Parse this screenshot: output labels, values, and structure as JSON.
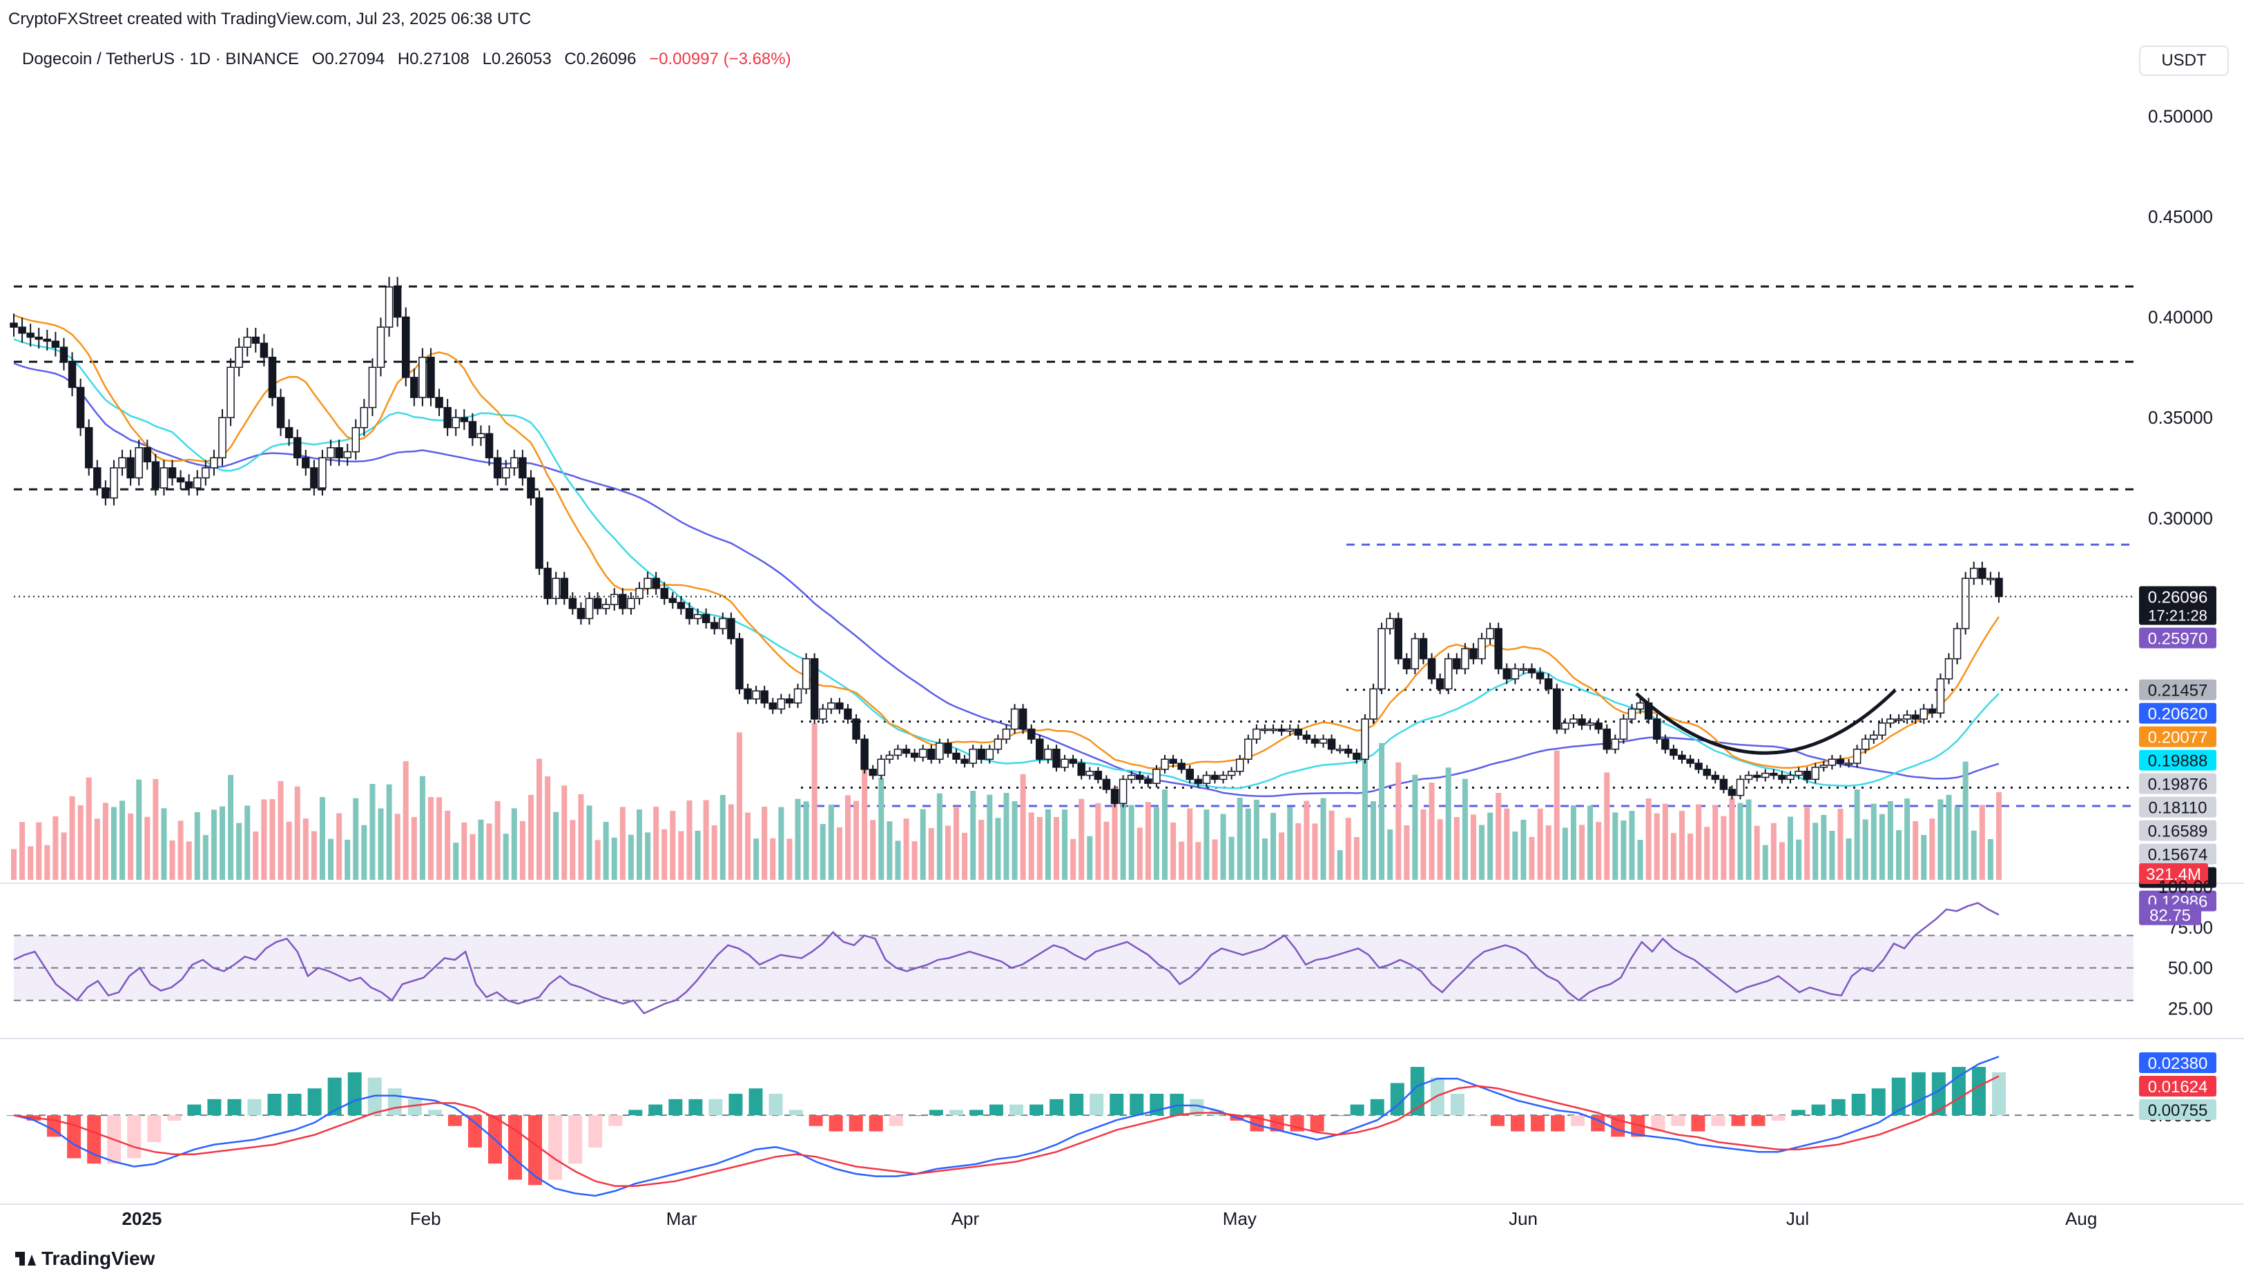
{
  "header": {
    "credit": "CryptoFXStreet created with TradingView.com, Jul 23, 2025 06:38 UTC",
    "symbol": "Dogecoin / TetherUS · 1D · BINANCE",
    "open": "O0.27094",
    "high": "H0.27108",
    "low": "L0.26053",
    "close": "C0.26096",
    "change": "−0.00997 (−3.68%)",
    "currency": "USDT"
  },
  "footer": {
    "brand": "TradingView"
  },
  "colors": {
    "up": "#089981",
    "down": "#f23645",
    "vol_up": "#7fc7bd",
    "vol_down": "#f7a5a8",
    "ma50": "#f7931a",
    "ma100": "#3dd9e8",
    "ma200": "#5b5fe8",
    "rsi": "#7e57c2",
    "macd": "#2962ff",
    "signal": "#f23645"
  },
  "chart_data": [
    {
      "type": "candlestick",
      "title": "Dogecoin / TetherUS · 1D · BINANCE",
      "ylim": [
        0.12,
        0.52
      ],
      "y_ticks": [
        "0.50000",
        "0.45000",
        "0.40000",
        "0.35000",
        "0.30000"
      ],
      "x_ticks": [
        "2025",
        "Feb",
        "Mar",
        "Apr",
        "May",
        "Jun",
        "Jul",
        "Aug"
      ],
      "x_tick_dates": [
        "2025-01-01",
        "2025-02-01",
        "2025-03-01",
        "2025-04-01",
        "2025-05-01",
        "2025-06-01",
        "2025-07-01",
        "2025-08-01"
      ],
      "date_range": [
        "2024-12-18",
        "2025-07-23"
      ],
      "close_series": [
        0.395,
        0.392,
        0.39,
        0.389,
        0.388,
        0.385,
        0.378,
        0.365,
        0.345,
        0.325,
        0.315,
        0.31,
        0.325,
        0.33,
        0.32,
        0.335,
        0.328,
        0.315,
        0.325,
        0.32,
        0.318,
        0.315,
        0.32,
        0.325,
        0.33,
        0.35,
        0.375,
        0.385,
        0.39,
        0.387,
        0.38,
        0.36,
        0.345,
        0.34,
        0.33,
        0.325,
        0.315,
        0.33,
        0.335,
        0.33,
        0.333,
        0.345,
        0.355,
        0.375,
        0.395,
        0.415,
        0.4,
        0.37,
        0.36,
        0.38,
        0.36,
        0.355,
        0.345,
        0.35,
        0.348,
        0.34,
        0.342,
        0.33,
        0.32,
        0.325,
        0.33,
        0.32,
        0.31,
        0.275,
        0.26,
        0.27,
        0.26,
        0.255,
        0.25,
        0.26,
        0.255,
        0.257,
        0.262,
        0.255,
        0.26,
        0.265,
        0.27,
        0.265,
        0.26,
        0.258,
        0.255,
        0.25,
        0.252,
        0.248,
        0.245,
        0.25,
        0.24,
        0.215,
        0.21,
        0.214,
        0.208,
        0.205,
        0.21,
        0.208,
        0.215,
        0.23,
        0.2,
        0.205,
        0.208,
        0.205,
        0.2,
        0.19,
        0.175,
        0.172,
        0.18,
        0.182,
        0.185,
        0.183,
        0.181,
        0.185,
        0.18,
        0.188,
        0.183,
        0.18,
        0.178,
        0.185,
        0.18,
        0.185,
        0.19,
        0.195,
        0.205,
        0.195,
        0.19,
        0.18,
        0.185,
        0.176,
        0.18,
        0.178,
        0.172,
        0.174,
        0.17,
        0.165,
        0.158,
        0.17,
        0.172,
        0.17,
        0.168,
        0.175,
        0.18,
        0.178,
        0.175,
        0.17,
        0.168,
        0.172,
        0.17,
        0.172,
        0.174,
        0.18,
        0.19,
        0.195,
        0.195,
        0.195,
        0.194,
        0.195,
        0.192,
        0.19,
        0.188,
        0.19,
        0.185,
        0.185,
        0.183,
        0.18,
        0.2,
        0.215,
        0.245,
        0.25,
        0.23,
        0.225,
        0.24,
        0.23,
        0.22,
        0.215,
        0.23,
        0.225,
        0.235,
        0.23,
        0.24,
        0.245,
        0.225,
        0.22,
        0.225,
        0.225,
        0.223,
        0.22,
        0.215,
        0.195,
        0.198,
        0.2,
        0.197,
        0.198,
        0.195,
        0.185,
        0.19,
        0.2,
        0.205,
        0.208,
        0.2,
        0.19,
        0.185,
        0.182,
        0.18,
        0.178,
        0.175,
        0.172,
        0.17,
        0.165,
        0.162,
        0.17,
        0.172,
        0.171,
        0.173,
        0.172,
        0.17,
        0.172,
        0.174,
        0.17,
        0.176,
        0.177,
        0.18,
        0.178,
        0.178,
        0.185,
        0.19,
        0.192,
        0.198,
        0.2,
        0.2,
        0.202,
        0.2,
        0.205,
        0.203,
        0.22,
        0.23,
        0.245,
        0.27,
        0.275,
        0.27,
        0.27,
        0.261
      ],
      "levels": [
        {
          "value": 0.41525,
          "label": "0.41525",
          "style": "dashed"
        },
        {
          "value": 0.37778,
          "label": "0.37778",
          "style": "dashed"
        },
        {
          "value": 0.31431,
          "label": "0.31431",
          "style": "dashed"
        },
        {
          "value": 0.28676,
          "label": "0.28676",
          "style": "dashed",
          "color": "#5b5fe8"
        },
        {
          "value": 0.21457,
          "label": "0.21457",
          "style": "dotted"
        },
        {
          "value": 0.19876,
          "label": "0.19876",
          "style": "dotted"
        },
        {
          "value": 0.16589,
          "label": "0.16589",
          "style": "dotted"
        },
        {
          "value": 0.15674,
          "label": "0.15674",
          "style": "dashed",
          "color": "#5b5fe8"
        }
      ],
      "price_labels": [
        {
          "value": 0.26096,
          "label": "0.26096",
          "sublabel": "17:21:28",
          "bg": "#131722"
        },
        {
          "value": 0.2597,
          "label": "0.25970",
          "bg": "#7e57c2"
        },
        {
          "value": 0.21457,
          "label": "0.21457",
          "bg": "#b2b5be"
        },
        {
          "value": 0.2062,
          "label": "0.20620",
          "bg": "#2962ff"
        },
        {
          "value": 0.20077,
          "label": "0.20077",
          "bg": "#f7931a"
        },
        {
          "value": 0.19888,
          "label": "0.19888",
          "bg": "#00e5ff"
        },
        {
          "value": 0.19876,
          "label": "0.19876",
          "bg": "#d1d4dc"
        },
        {
          "value": 0.1811,
          "label": "0.18110",
          "bg": "#d1d4dc"
        },
        {
          "value": 0.16589,
          "label": "0.16589",
          "bg": "#d1d4dc"
        },
        {
          "value": 0.15674,
          "label": "0.15674",
          "bg": "#d1d4dc"
        },
        {
          "value": 0.1428,
          "label": "0.14280",
          "bg": "#131722"
        },
        {
          "value": 0.12986,
          "label": "0.12986",
          "bg": "#7e57c2"
        }
      ],
      "volume_label": {
        "label": "321.4M",
        "bg": "#f23645"
      }
    },
    {
      "type": "line",
      "title": "RSI",
      "ylim": [
        15,
        100
      ],
      "y_ticks": [
        "100.00",
        "75.00",
        "50.00",
        "25.00"
      ],
      "bands": [
        30,
        70
      ],
      "last_label": "82.75",
      "values": [
        55,
        58,
        60,
        50,
        40,
        35,
        30,
        38,
        42,
        33,
        35,
        45,
        50,
        40,
        36,
        38,
        43,
        52,
        55,
        50,
        48,
        52,
        57,
        55,
        62,
        66,
        68,
        60,
        45,
        50,
        48,
        45,
        42,
        44,
        38,
        35,
        30,
        40,
        42,
        44,
        50,
        56,
        55,
        60,
        40,
        32,
        35,
        30,
        28,
        30,
        32,
        40,
        45,
        40,
        38,
        35,
        32,
        30,
        28,
        30,
        22,
        25,
        28,
        30,
        35,
        42,
        50,
        58,
        64,
        62,
        58,
        52,
        55,
        58,
        57,
        56,
        60,
        65,
        72,
        66,
        64,
        70,
        68,
        55,
        50,
        48,
        50,
        52,
        55,
        56,
        58,
        60,
        58,
        56,
        54,
        50,
        52,
        56,
        60,
        64,
        62,
        58,
        55,
        60,
        62,
        64,
        66,
        62,
        58,
        52,
        48,
        40,
        44,
        50,
        58,
        62,
        60,
        58,
        60,
        62,
        66,
        70,
        62,
        52,
        55,
        56,
        58,
        60,
        62,
        58,
        50,
        52,
        55,
        52,
        48,
        40,
        35,
        42,
        48,
        55,
        60,
        62,
        64,
        62,
        58,
        50,
        45,
        42,
        35,
        30,
        35,
        38,
        40,
        44,
        56,
        66,
        60,
        68,
        62,
        58,
        55,
        50,
        45,
        40,
        35,
        38,
        40,
        42,
        45,
        40,
        35,
        38,
        36,
        34,
        33,
        45,
        50,
        48,
        55,
        65,
        62,
        70,
        75,
        80,
        86,
        85,
        88,
        90,
        86,
        82.75
      ]
    },
    {
      "type": "line",
      "title": "MACD",
      "ylim": [
        -0.035,
        0.03
      ],
      "y_ticks": [
        "0.00000"
      ],
      "last_labels": [
        {
          "label": "0.02380",
          "bg": "#2962ff"
        },
        {
          "label": "0.01624",
          "bg": "#f23645"
        },
        {
          "label": "0.00755",
          "bg": "#b2dfdb"
        }
      ],
      "series": [
        {
          "values": [
            0.0,
            -0.002,
            -0.006,
            -0.012,
            -0.016,
            -0.019,
            -0.021,
            -0.02,
            -0.017,
            -0.014,
            -0.012,
            -0.011,
            -0.01,
            -0.008,
            -0.006,
            -0.003,
            0.002,
            0.006,
            0.008,
            0.008,
            0.007,
            0.006,
            0.003,
            -0.003,
            -0.01,
            -0.018,
            -0.025,
            -0.03,
            -0.032,
            -0.033,
            -0.031,
            -0.028,
            -0.026,
            -0.024,
            -0.022,
            -0.02,
            -0.017,
            -0.014,
            -0.013,
            -0.015,
            -0.019,
            -0.022,
            -0.024,
            -0.025,
            -0.025,
            -0.024,
            -0.022,
            -0.021,
            -0.02,
            -0.018,
            -0.017,
            -0.015,
            -0.012,
            -0.008,
            -0.005,
            -0.002,
            0.0,
            0.002,
            0.004,
            0.004,
            0.002,
            -0.001,
            -0.004,
            -0.006,
            -0.008,
            -0.01,
            -0.008,
            -0.005,
            -0.002,
            0.004,
            0.012,
            0.015,
            0.015,
            0.012,
            0.009,
            0.006,
            0.004,
            0.002,
            0.001,
            -0.002,
            -0.006,
            -0.008,
            -0.009,
            -0.01,
            -0.012,
            -0.013,
            -0.014,
            -0.015,
            -0.015,
            -0.013,
            -0.011,
            -0.009,
            -0.006,
            -0.003,
            0.002,
            0.006,
            0.01,
            0.016,
            0.021,
            0.024
          ]
        },
        {
          "values": [
            0.0,
            -0.001,
            -0.002,
            -0.004,
            -0.007,
            -0.01,
            -0.013,
            -0.015,
            -0.016,
            -0.016,
            -0.015,
            -0.014,
            -0.013,
            -0.012,
            -0.01,
            -0.008,
            -0.005,
            -0.002,
            0.001,
            0.003,
            0.004,
            0.005,
            0.005,
            0.003,
            -0.001,
            -0.006,
            -0.012,
            -0.018,
            -0.023,
            -0.027,
            -0.029,
            -0.029,
            -0.028,
            -0.027,
            -0.025,
            -0.023,
            -0.021,
            -0.019,
            -0.017,
            -0.016,
            -0.017,
            -0.019,
            -0.021,
            -0.022,
            -0.023,
            -0.024,
            -0.023,
            -0.022,
            -0.021,
            -0.02,
            -0.019,
            -0.017,
            -0.015,
            -0.012,
            -0.009,
            -0.006,
            -0.004,
            -0.002,
            0.0,
            0.001,
            0.001,
            0.0,
            -0.001,
            -0.003,
            -0.005,
            -0.007,
            -0.008,
            -0.007,
            -0.005,
            -0.002,
            0.003,
            0.008,
            0.011,
            0.012,
            0.011,
            0.009,
            0.007,
            0.005,
            0.003,
            0.001,
            -0.002,
            -0.004,
            -0.006,
            -0.008,
            -0.009,
            -0.011,
            -0.012,
            -0.013,
            -0.014,
            -0.014,
            -0.013,
            -0.012,
            -0.01,
            -0.008,
            -0.005,
            -0.002,
            0.002,
            0.007,
            0.012,
            0.016
          ]
        }
      ]
    }
  ]
}
